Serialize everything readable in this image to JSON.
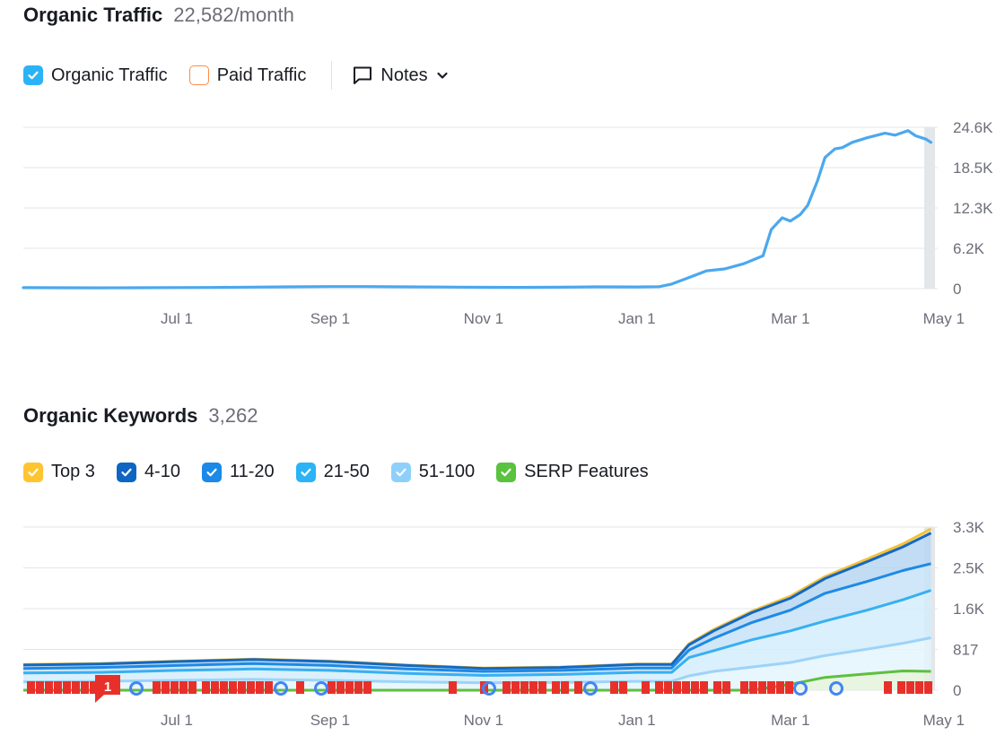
{
  "traffic": {
    "title": "Organic Traffic",
    "metric": "22,582/month",
    "legend": [
      {
        "label": "Organic Traffic",
        "checked": true,
        "color": "#2bb3f7"
      },
      {
        "label": "Paid Traffic",
        "checked": false,
        "color": "#ff8c43"
      }
    ],
    "notes_label": "Notes"
  },
  "keywords": {
    "title": "Organic Keywords",
    "metric": "3,262",
    "legend": [
      {
        "label": "Top 3",
        "checked": true,
        "color": "#ffc531"
      },
      {
        "label": "4-10",
        "checked": true,
        "color": "#0e66c2"
      },
      {
        "label": "11-20",
        "checked": true,
        "color": "#1a89e8"
      },
      {
        "label": "21-50",
        "checked": true,
        "color": "#2bb3f7"
      },
      {
        "label": "51-100",
        "checked": true,
        "color": "#8fd0fb"
      },
      {
        "label": "SERP Features",
        "checked": true,
        "color": "#59c23f"
      }
    ],
    "marker_badge": "1"
  },
  "chart_data": [
    {
      "type": "line",
      "x_ticks": [
        "Jul 1",
        "Sep 1",
        "Nov 1",
        "Jan 1",
        "Mar 1",
        "May 1"
      ],
      "y_ticks": [
        "0",
        "6.2K",
        "12.3K",
        "18.5K",
        "24.6K"
      ],
      "ylim": [
        0,
        24600
      ],
      "grid": true,
      "series": [
        {
          "name": "Organic Traffic",
          "color": "#4aa8ee",
          "x": [
            "May 1",
            "May 15",
            "Jun 1",
            "Jun 15",
            "Jul 1",
            "Jul 15",
            "Aug 1",
            "Aug 15",
            "Sep 1",
            "Sep 15",
            "Oct 1",
            "Oct 15",
            "Nov 1",
            "Nov 15",
            "Dec 1",
            "Dec 15",
            "Jan 1",
            "Jan 10",
            "Jan 15",
            "Jan 22",
            "Jan 29",
            "Feb 5",
            "Feb 12",
            "Feb 19",
            "Feb 22",
            "Feb 26",
            "Mar 1",
            "Mar 5",
            "Mar 8",
            "Mar 12",
            "Mar 15",
            "Mar 19",
            "Mar 22",
            "Mar 26",
            "Apr 1",
            "Apr 8",
            "Apr 12",
            "Apr 17",
            "Apr 20",
            "Apr 24",
            "Apr 26"
          ],
          "values": [
            150,
            130,
            120,
            130,
            160,
            180,
            230,
            280,
            320,
            310,
            280,
            250,
            200,
            190,
            220,
            270,
            260,
            300,
            700,
            1700,
            2700,
            3000,
            3800,
            5000,
            9000,
            10800,
            10300,
            11300,
            12700,
            16500,
            20000,
            21300,
            21500,
            22300,
            23000,
            23700,
            23400,
            24100,
            23300,
            22800,
            22300
          ]
        }
      ]
    },
    {
      "type": "area",
      "x_ticks": [
        "Jul 1",
        "Sep 1",
        "Nov 1",
        "Jan 1",
        "Mar 1",
        "May 1"
      ],
      "y_ticks": [
        "0",
        "817",
        "1.6K",
        "2.5K",
        "3.3K"
      ],
      "ylim": [
        0,
        3300
      ],
      "grid": true,
      "x": [
        "May 1",
        "Jun 1",
        "Jul 1",
        "Aug 1",
        "Sep 1",
        "Oct 1",
        "Nov 1",
        "Dec 1",
        "Jan 1",
        "Jan 15",
        "Jan 22",
        "Feb 1",
        "Feb 15",
        "Mar 1",
        "Mar 15",
        "Apr 1",
        "Apr 15",
        "Apr 26"
      ],
      "series": [
        {
          "name": "Top 3",
          "color": "#f3c13c",
          "values": [
            520,
            540,
            590,
            630,
            590,
            510,
            450,
            470,
            530,
            530,
            940,
            1230,
            1600,
            1900,
            2300,
            2650,
            2960,
            3262
          ]
        },
        {
          "name": "4-10",
          "color": "#1468c0",
          "values": [
            510,
            530,
            580,
            620,
            580,
            500,
            440,
            460,
            520,
            520,
            920,
            1200,
            1570,
            1860,
            2260,
            2600,
            2900,
            3180
          ]
        },
        {
          "name": "11-20",
          "color": "#1d8ae6",
          "values": [
            440,
            460,
            500,
            540,
            500,
            430,
            380,
            400,
            450,
            450,
            810,
            1050,
            1370,
            1620,
            1960,
            2200,
            2420,
            2560
          ]
        },
        {
          "name": "21-50",
          "color": "#37b0f2",
          "values": [
            350,
            360,
            400,
            430,
            400,
            340,
            300,
            320,
            360,
            360,
            660,
            800,
            1020,
            1200,
            1400,
            1620,
            1830,
            2020
          ]
        },
        {
          "name": "51-100",
          "color": "#9dd3f8",
          "values": [
            170,
            180,
            200,
            220,
            200,
            170,
            150,
            160,
            180,
            180,
            290,
            380,
            470,
            560,
            700,
            830,
            950,
            1060
          ]
        },
        {
          "name": "SERP Features",
          "color": "#5fbf3f",
          "values": [
            0,
            0,
            0,
            0,
            0,
            0,
            0,
            0,
            0,
            0,
            0,
            0,
            0,
            120,
            260,
            330,
            390,
            380
          ]
        }
      ]
    }
  ]
}
